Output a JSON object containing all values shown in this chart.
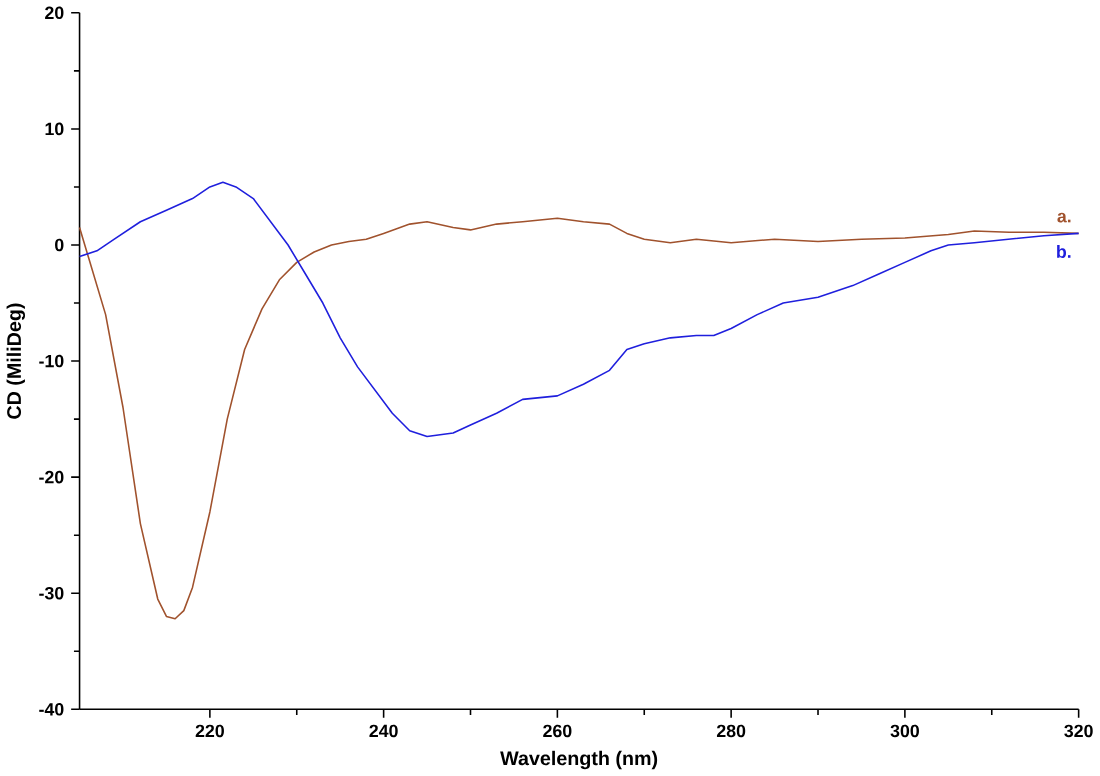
{
  "chart_data": {
    "type": "line",
    "xlabel": "Wavelength (nm)",
    "ylabel": "CD (MiliDeg)",
    "xlim": [
      205,
      320
    ],
    "ylim": [
      -40,
      20
    ],
    "xticks": [
      220,
      240,
      260,
      280,
      300,
      320
    ],
    "yticks": [
      -40,
      -30,
      -20,
      -10,
      0,
      10,
      20
    ],
    "grid": false,
    "marker": "none",
    "line_style": "solid",
    "series": [
      {
        "name": "a.",
        "color": "#a0522d",
        "x": [
          205,
          206,
          208,
          210,
          212,
          214,
          215,
          216,
          217,
          218,
          220,
          222,
          224,
          226,
          228,
          230,
          232,
          234,
          236,
          238,
          240,
          243,
          245,
          248,
          250,
          253,
          256,
          260,
          263,
          266,
          268,
          270,
          273,
          276,
          280,
          285,
          290,
          295,
          300,
          305,
          308,
          312,
          316,
          320
        ],
        "values": [
          1.5,
          -1,
          -6,
          -14,
          -24,
          -30.5,
          -32,
          -32.2,
          -31.5,
          -29.5,
          -23,
          -15,
          -9,
          -5.5,
          -3,
          -1.5,
          -0.6,
          0,
          0.3,
          0.5,
          1,
          1.8,
          2,
          1.5,
          1.3,
          1.8,
          2,
          2.3,
          2,
          1.8,
          1,
          0.5,
          0.2,
          0.5,
          0.2,
          0.5,
          0.3,
          0.5,
          0.6,
          0.9,
          1.2,
          1.1,
          1.1,
          1
        ]
      },
      {
        "name": "b.",
        "color": "#1f1fdd",
        "x": [
          205,
          207,
          209,
          212,
          215,
          218,
          220,
          221.5,
          223,
          225,
          227,
          229,
          231,
          233,
          235,
          237,
          239,
          241,
          243,
          245,
          248,
          250,
          253,
          256,
          260,
          263,
          266,
          268,
          270,
          273,
          276,
          278,
          280,
          283,
          286,
          290,
          294,
          297,
          300,
          303,
          305,
          308,
          312,
          316,
          320
        ],
        "values": [
          -1,
          -0.5,
          0.5,
          2,
          3,
          4,
          5,
          5.4,
          5,
          4,
          2,
          0,
          -2.5,
          -5,
          -8,
          -10.5,
          -12.5,
          -14.5,
          -16,
          -16.5,
          -16.2,
          -15.5,
          -14.5,
          -13.3,
          -13,
          -12,
          -10.8,
          -9,
          -8.5,
          -8,
          -7.8,
          -7.8,
          -7.2,
          -6,
          -5,
          -4.5,
          -3.5,
          -2.5,
          -1.5,
          -0.5,
          0,
          0.2,
          0.5,
          0.8,
          1
        ]
      }
    ]
  }
}
